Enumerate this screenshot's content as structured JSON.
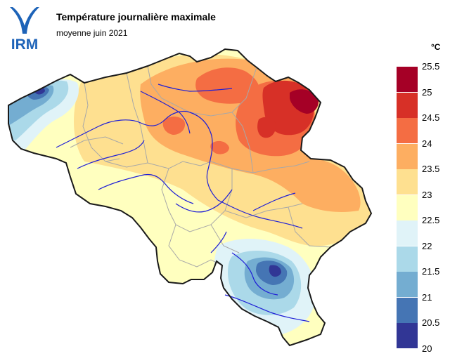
{
  "header": {
    "title": "Température journalière maximale",
    "subtitle": "moyenne juin 2021"
  },
  "logo": {
    "text": "IRM",
    "color": "#1d63b8"
  },
  "legend": {
    "unit": "°C",
    "classes": [
      {
        "label": "25.5",
        "color": "#a50026"
      },
      {
        "label": "25",
        "color": "#d73027"
      },
      {
        "label": "24.5",
        "color": "#f46d43"
      },
      {
        "label": "24",
        "color": "#fdae61"
      },
      {
        "label": "23.5",
        "color": "#fee090"
      },
      {
        "label": "23",
        "color": "#ffffbf"
      },
      {
        "label": "22.5",
        "color": "#e0f3f8"
      },
      {
        "label": "22",
        "color": "#abd9e9"
      },
      {
        "label": "21.5",
        "color": "#74add1"
      },
      {
        "label": "21",
        "color": "#4575b4"
      },
      {
        "label": "20.5",
        "color": "#313695"
      }
    ],
    "bottom_label": "20"
  },
  "map": {
    "region": "Belgium",
    "border_color": "#1a1a1a",
    "province_line_color": "#a8a8a8",
    "river_color": "#1f1fd6"
  }
}
